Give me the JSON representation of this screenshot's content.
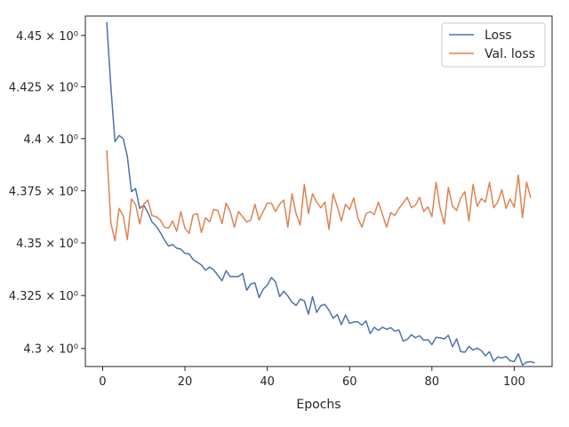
{
  "chart_data": {
    "type": "line",
    "xlabel": "Epochs",
    "ylabel": "",
    "title": "",
    "xlim": [
      -4.2,
      109.2
    ],
    "ylim": [
      4.2915,
      4.4595
    ],
    "xticks": [
      0,
      20,
      40,
      60,
      80,
      100
    ],
    "yticks": [
      {
        "value": 4.3,
        "label": "4.3 × 10⁰"
      },
      {
        "value": 4.325,
        "label": "4.325 × 10⁰"
      },
      {
        "value": 4.35,
        "label": "4.35 × 10⁰"
      },
      {
        "value": 4.375,
        "label": "4.375 × 10⁰"
      },
      {
        "value": 4.4,
        "label": "4.4 × 10⁰"
      },
      {
        "value": 4.425,
        "label": "4.425 × 10⁰"
      },
      {
        "value": 4.45,
        "label": "4.45 × 10⁰"
      }
    ],
    "log_scale_y": true,
    "grid": false,
    "legend_position": "top-right",
    "series": [
      {
        "name": "Loss",
        "color": "#4c72b0",
        "x_start": 1,
        "values": [
          4.4565,
          4.425,
          4.3985,
          4.4015,
          4.4,
          4.3915,
          4.3745,
          4.376,
          4.3665,
          4.368,
          4.3645,
          4.36,
          4.358,
          4.355,
          4.3515,
          4.3485,
          4.3492,
          4.3475,
          4.347,
          4.345,
          4.3448,
          4.342,
          4.3408,
          4.3395,
          4.337,
          4.3385,
          4.3372,
          4.3345,
          4.332,
          4.3368,
          4.334,
          4.334,
          4.334,
          4.3355,
          4.3275,
          4.3305,
          4.331,
          4.324,
          4.328,
          4.33,
          4.3335,
          4.3315,
          4.3245,
          4.327,
          4.3248,
          4.3218,
          4.3203,
          4.3233,
          4.3225,
          4.3162,
          4.3245,
          4.317,
          4.3202,
          4.3208,
          4.318,
          4.3142,
          4.316,
          4.3112,
          4.3158,
          4.3118,
          4.3125,
          4.3125,
          4.311,
          4.313,
          4.307,
          4.31,
          4.3085,
          4.31,
          4.309,
          4.3098,
          4.3082,
          4.3087,
          4.3035,
          4.3042,
          4.3065,
          4.305,
          4.306,
          4.3038,
          4.3042,
          4.3018,
          4.3052,
          4.305,
          4.3045,
          4.3062,
          4.3008,
          4.3045,
          4.2985,
          4.2982,
          4.301,
          4.2992,
          4.3002,
          4.299,
          4.2965,
          4.2985,
          4.294,
          4.296,
          4.2955,
          4.2962,
          4.2942,
          4.2938,
          4.2975,
          4.2922,
          4.2935,
          4.2938,
          4.2932
        ]
      },
      {
        "name": "Val. loss",
        "color": "#dd8452",
        "x_start": 1,
        "values": [
          4.3945,
          4.3595,
          4.351,
          4.3665,
          4.363,
          4.3515,
          4.371,
          4.3685,
          4.359,
          4.3685,
          4.3705,
          4.363,
          4.3625,
          4.361,
          4.3575,
          4.357,
          4.3605,
          4.3555,
          4.365,
          4.357,
          4.3545,
          4.3635,
          4.364,
          4.355,
          4.362,
          4.36,
          4.366,
          4.3655,
          4.3592,
          4.369,
          4.365,
          4.3575,
          4.365,
          4.3625,
          4.36,
          4.361,
          4.3685,
          4.361,
          4.365,
          4.369,
          4.369,
          4.365,
          4.3685,
          4.3705,
          4.3575,
          4.3735,
          4.364,
          4.3585,
          4.378,
          4.364,
          4.3735,
          4.3695,
          4.3668,
          4.3695,
          4.3565,
          4.3735,
          4.3675,
          4.3605,
          4.3685,
          4.366,
          4.3715,
          4.362,
          4.3575,
          4.364,
          4.365,
          4.3635,
          4.3695,
          4.3635,
          4.3575,
          4.3645,
          4.363,
          4.3665,
          4.369,
          4.3718,
          4.3668,
          4.368,
          4.3718,
          4.365,
          4.3672,
          4.3625,
          4.379,
          4.3665,
          4.359,
          4.3765,
          4.3675,
          4.3655,
          4.3715,
          4.3745,
          4.3605,
          4.378,
          4.3675,
          4.3712,
          4.3695,
          4.379,
          4.3668,
          4.3695,
          4.3755,
          4.3665,
          4.371,
          4.367,
          4.3825,
          4.362,
          4.379,
          4.3715
        ]
      }
    ]
  }
}
